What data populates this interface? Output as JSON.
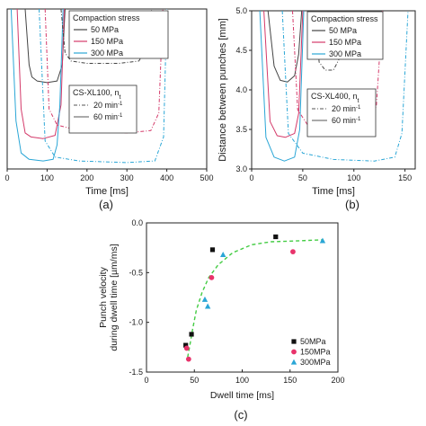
{
  "chart_data": [
    {
      "id": "a",
      "type": "line",
      "panel_label": "(a)",
      "xlabel": "Time [ms]",
      "ylabel": "",
      "xlim": [
        0,
        500
      ],
      "ylim": [
        3.0,
        5.0
      ],
      "xticks": [
        0,
        100,
        200,
        300,
        400,
        500
      ],
      "yticks": [],
      "legend": {
        "title": "Compaction stress",
        "entries": [
          "50 MPa",
          "150 MPa",
          "300 MPa"
        ],
        "colors": [
          "#444444",
          "#d43a6a",
          "#2aa6d6"
        ],
        "placement": "top-right"
      },
      "legend2": {
        "title": "CS-XL100, n",
        "title_sub": "t",
        "entries": [
          {
            "text": "20 min",
            "sup": "-1",
            "dash": true
          },
          {
            "text": "60 min",
            "sup": "-1",
            "dash": false
          }
        ],
        "placement": "middle-right"
      },
      "series": [
        {
          "stress": "50 MPa",
          "speed": "60",
          "color": "#444444",
          "dashed": false,
          "x": [
            45,
            55,
            62,
            75,
            100,
            125,
            138,
            145
          ],
          "y": [
            5.0,
            4.3,
            4.15,
            4.1,
            4.08,
            4.1,
            4.3,
            5.0
          ]
        },
        {
          "stress": "150 MPa",
          "speed": "60",
          "color": "#d43a6a",
          "dashed": false,
          "x": [
            25,
            35,
            45,
            60,
            90,
            120,
            135,
            143
          ],
          "y": [
            5.0,
            3.75,
            3.45,
            3.4,
            3.38,
            3.42,
            3.8,
            5.0
          ]
        },
        {
          "stress": "300 MPa",
          "speed": "60",
          "color": "#2aa6d6",
          "dashed": false,
          "x": [
            10,
            22,
            35,
            55,
            90,
            115,
            125,
            132,
            140
          ],
          "y": [
            5.0,
            3.6,
            3.2,
            3.12,
            3.1,
            3.12,
            3.3,
            3.8,
            5.0
          ]
        },
        {
          "stress": "50 MPa",
          "speed": "20",
          "color": "#444444",
          "dashed": true,
          "x": [
            135,
            145,
            160,
            200,
            280,
            330,
            355,
            362
          ],
          "y": [
            5.0,
            4.45,
            4.35,
            4.32,
            4.32,
            4.35,
            4.55,
            5.0
          ]
        },
        {
          "stress": "150 MPa",
          "speed": "20",
          "color": "#d43a6a",
          "dashed": true,
          "x": [
            95,
            105,
            125,
            180,
            300,
            360,
            380,
            390
          ],
          "y": [
            5.0,
            3.75,
            3.55,
            3.48,
            3.45,
            3.48,
            3.7,
            5.0
          ]
        },
        {
          "stress": "300 MPa",
          "speed": "20",
          "color": "#2aa6d6",
          "dashed": true,
          "x": [
            80,
            95,
            120,
            180,
            300,
            370,
            392,
            400
          ],
          "y": [
            5.0,
            3.35,
            3.15,
            3.1,
            3.08,
            3.1,
            3.4,
            5.0
          ]
        }
      ]
    },
    {
      "id": "b",
      "type": "line",
      "panel_label": "(b)",
      "xlabel": "Time [ms]",
      "ylabel": "Distance between punches [mm]",
      "xlim": [
        0,
        160
      ],
      "ylim": [
        3.0,
        5.0
      ],
      "xticks": [
        0,
        50,
        100,
        150
      ],
      "yticks": [
        3.0,
        3.5,
        4.0,
        4.5,
        5.0
      ],
      "legend": {
        "title": "Compaction stress",
        "entries": [
          "50 MPa",
          "150 MPa",
          "300 MPa"
        ],
        "colors": [
          "#444444",
          "#d43a6a",
          "#2aa6d6"
        ],
        "placement": "top-right"
      },
      "legend2": {
        "title": "CS-XL400, n",
        "title_sub": "t",
        "entries": [
          {
            "text": "20 min",
            "sup": "-1",
            "dash": true
          },
          {
            "text": "60 min",
            "sup": "-1",
            "dash": false
          }
        ],
        "placement": "middle-right"
      },
      "series": [
        {
          "stress": "50 MPa",
          "speed": "60",
          "color": "#444444",
          "dashed": false,
          "x": [
            16,
            22,
            28,
            35,
            42,
            46,
            49
          ],
          "y": [
            5.0,
            4.3,
            4.12,
            4.1,
            4.18,
            4.45,
            5.0
          ]
        },
        {
          "stress": "150 MPa",
          "speed": "60",
          "color": "#d43a6a",
          "dashed": false,
          "x": [
            12,
            18,
            25,
            33,
            42,
            46,
            50
          ],
          "y": [
            5.0,
            3.6,
            3.42,
            3.4,
            3.45,
            3.7,
            5.0
          ]
        },
        {
          "stress": "300 MPa",
          "speed": "60",
          "color": "#2aa6d6",
          "dashed": false,
          "x": [
            8,
            14,
            22,
            32,
            42,
            47,
            51
          ],
          "y": [
            5.0,
            3.4,
            3.15,
            3.1,
            3.15,
            3.5,
            5.0
          ]
        },
        {
          "stress": "50 MPa",
          "speed": "20",
          "color": "#444444",
          "dashed": true,
          "x": [
            62,
            66,
            72,
            80,
            86,
            90
          ],
          "y": [
            5.0,
            4.35,
            4.25,
            4.25,
            4.4,
            5.0
          ]
        },
        {
          "stress": "150 MPa",
          "speed": "20",
          "color": "#d43a6a",
          "dashed": true,
          "x": [
            40,
            45,
            55,
            75,
            100,
            115,
            122,
            128
          ],
          "y": [
            5.0,
            3.75,
            3.55,
            3.48,
            3.48,
            3.55,
            3.8,
            5.0
          ]
        },
        {
          "stress": "300 MPa",
          "speed": "20",
          "color": "#2aa6d6",
          "dashed": true,
          "x": [
            30,
            36,
            50,
            80,
            120,
            140,
            147,
            153
          ],
          "y": [
            5.0,
            3.45,
            3.2,
            3.12,
            3.1,
            3.15,
            3.45,
            5.0
          ]
        }
      ]
    },
    {
      "id": "c",
      "type": "scatter",
      "panel_label": "(c)",
      "xlabel": "Dwell time [ms]",
      "ylabel_line1": "Punch velocity",
      "ylabel_line2": "during dwell time [µm/ms]",
      "xlim": [
        0,
        200
      ],
      "ylim": [
        -1.5,
        0.0
      ],
      "xticks": [
        0,
        50,
        100,
        150,
        200
      ],
      "yticks": [
        0.0,
        -0.5,
        -1.0,
        -1.5
      ],
      "yticklabels": [
        "0.0",
        "-0.5",
        "-1.0",
        "-1.5"
      ],
      "legend": {
        "entries": [
          "50MPa",
          "150MPa",
          "300MPa"
        ],
        "colors": [
          "#111111",
          "#e8336b",
          "#2aa6d6"
        ],
        "markers": [
          "square",
          "circle",
          "triangle"
        ],
        "placement": "bottom-right"
      },
      "fit": {
        "color": "#44cc44",
        "dashed": true,
        "x": [
          43,
          45,
          48,
          52,
          58,
          65,
          75,
          90,
          110,
          130,
          160,
          185
        ],
        "y": [
          -1.35,
          -1.25,
          -1.08,
          -0.88,
          -0.7,
          -0.55,
          -0.42,
          -0.3,
          -0.22,
          -0.19,
          -0.18,
          -0.17
        ]
      },
      "series": [
        {
          "name": "50MPa",
          "marker": "square",
          "color": "#111111",
          "x": [
            41,
            47,
            69,
            135
          ],
          "y": [
            -1.23,
            -1.12,
            -0.27,
            -0.14
          ]
        },
        {
          "name": "150MPa",
          "marker": "circle",
          "color": "#e8336b",
          "x": [
            42,
            44,
            68,
            153
          ],
          "y": [
            -1.26,
            -1.37,
            -0.55,
            -0.29
          ]
        },
        {
          "name": "300MPa",
          "marker": "triangle",
          "color": "#2aa6d6",
          "x": [
            61,
            64,
            80,
            184
          ],
          "y": [
            -0.77,
            -0.84,
            -0.32,
            -0.18
          ]
        }
      ]
    }
  ]
}
